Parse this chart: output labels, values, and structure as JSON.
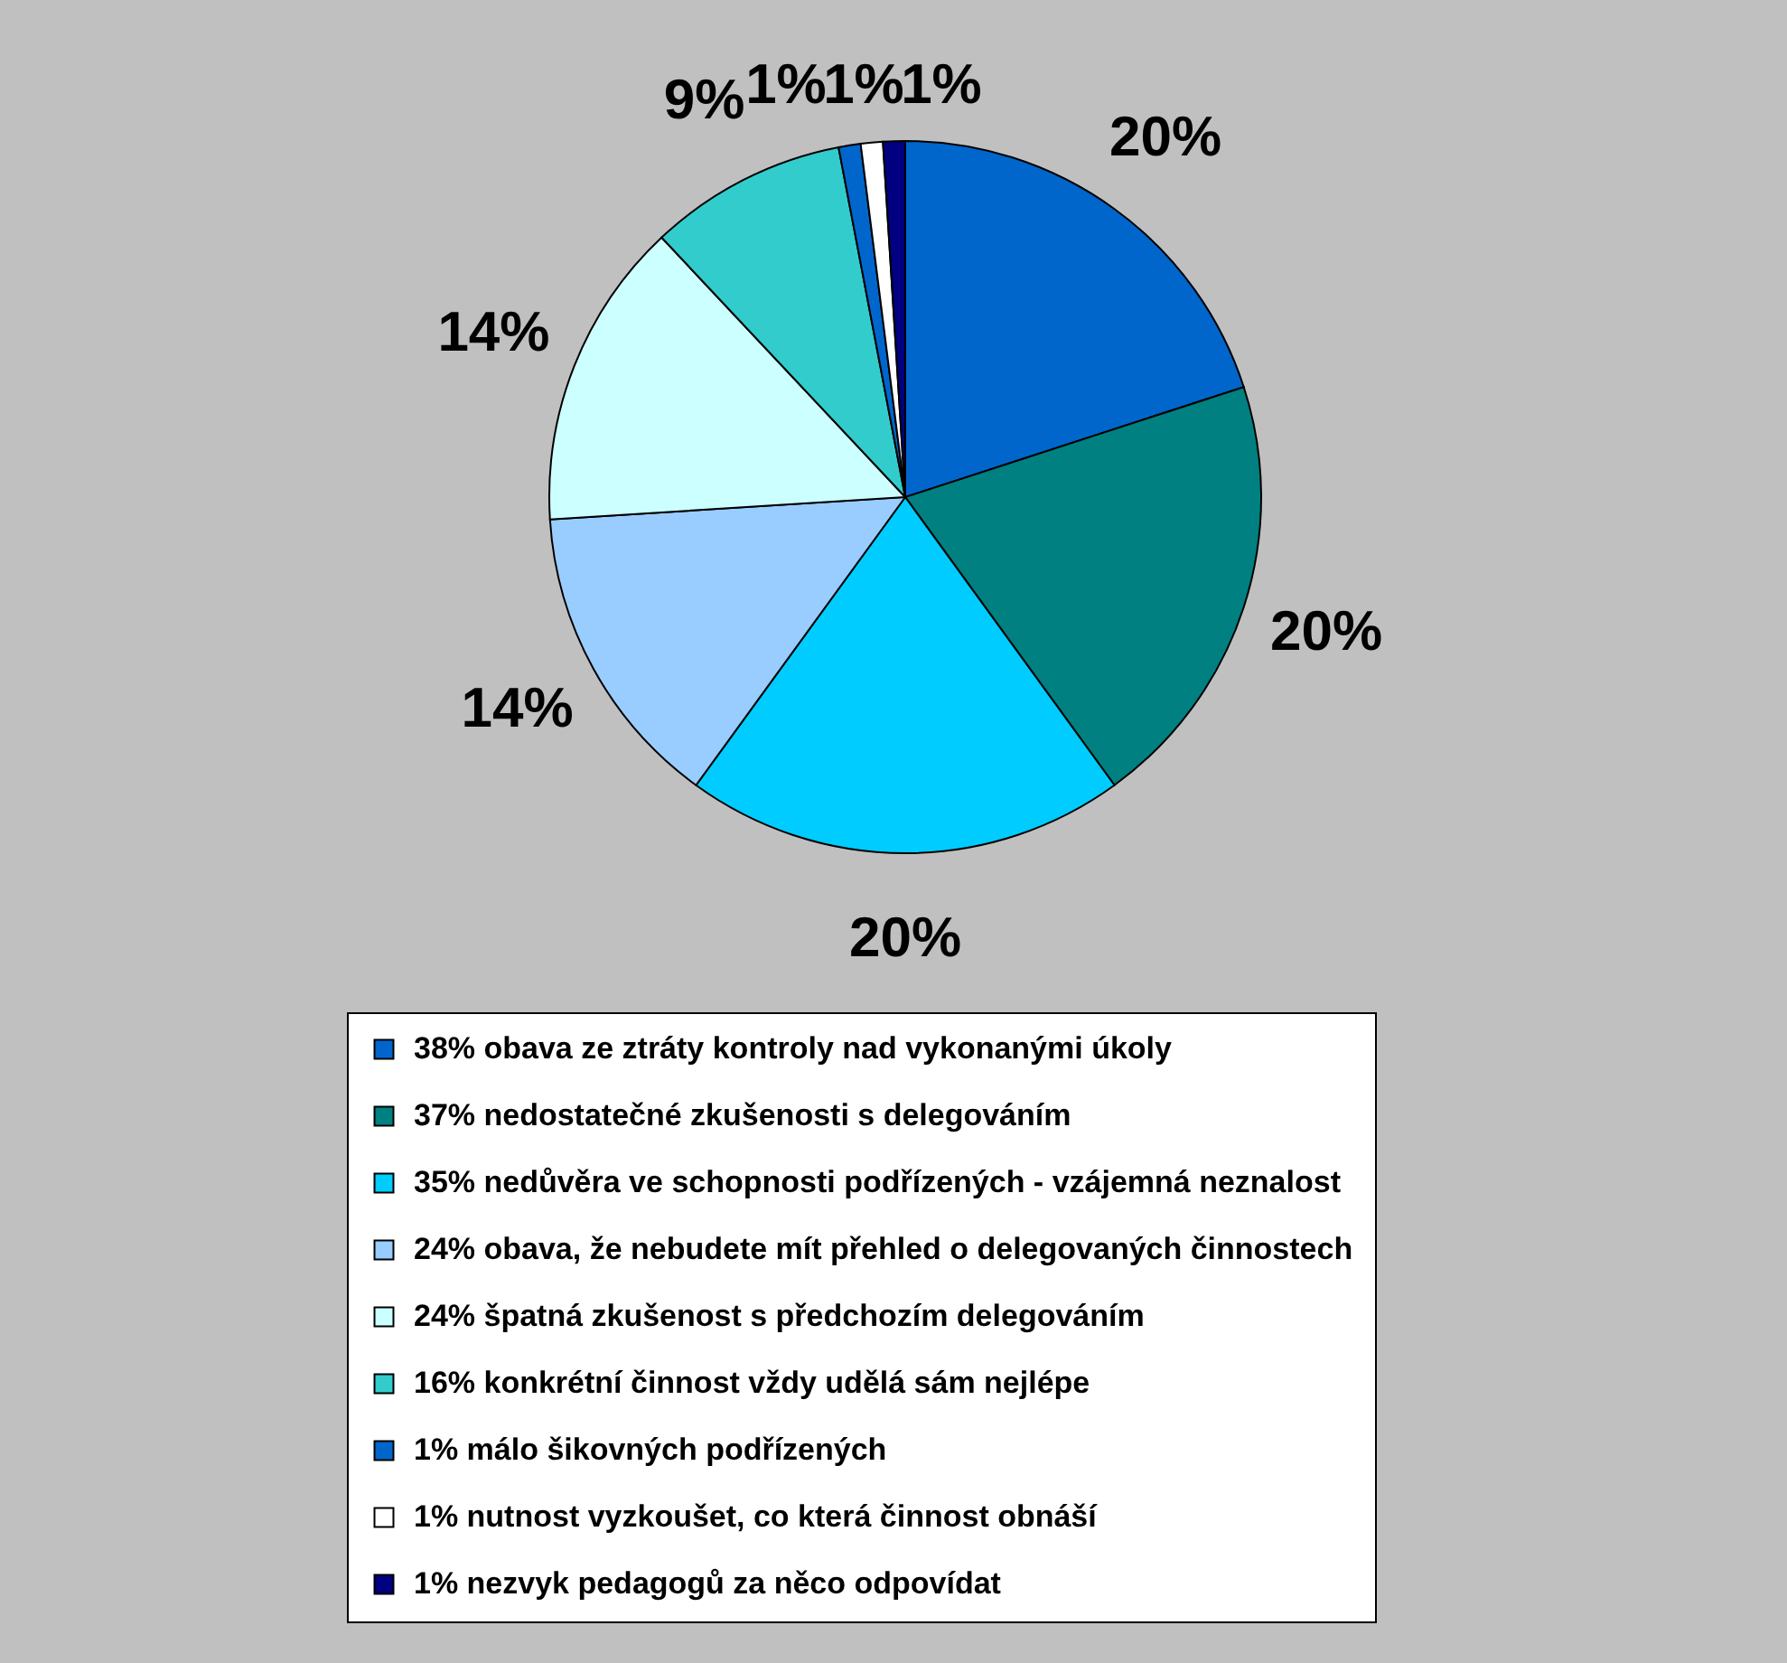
{
  "chart_data": {
    "type": "pie",
    "categories": [
      "38% obava ze ztráty kontroly nad vykonanými úkoly",
      "37% nedostatečné zkušenosti s delegováním",
      "35% nedůvěra ve schopnosti podřízených - vzájemná neznalost",
      "24% obava, že nebudete mít přehled o delegovaných činnostech",
      "24% špatná zkušenost s předchozím delegováním",
      "16% konkrétní činnost vždy udělá sám nejlépe",
      "1% málo šikovných podřízených",
      "1% nutnost vyzkoušet, co která činnost obnáší",
      "1% nezvyk pedagogů za něco odpovídat"
    ],
    "values": [
      20,
      20,
      20,
      14,
      14,
      9,
      1,
      1,
      1
    ],
    "value_labels": [
      "20%",
      "20%",
      "20%",
      "14%",
      "14%",
      "9%",
      "1%",
      "1%",
      "1%"
    ],
    "colors": [
      "#0066cc",
      "#008080",
      "#00ccff",
      "#99ccff",
      "#ccffff",
      "#33cccc",
      "#0066cc",
      "#ffffff",
      "#000080"
    ],
    "legend": "bottom"
  }
}
